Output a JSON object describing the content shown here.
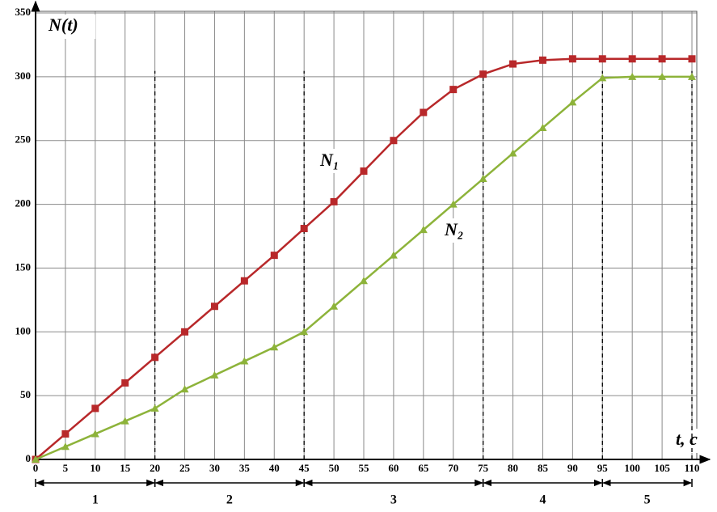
{
  "chart_data": {
    "type": "line",
    "y_label": "N(t)",
    "x_label": "t, c",
    "x": [
      0,
      5,
      10,
      15,
      20,
      25,
      30,
      35,
      40,
      45,
      50,
      55,
      60,
      65,
      70,
      75,
      80,
      85,
      90,
      95,
      100,
      105,
      110
    ],
    "series": [
      {
        "name": "N₁",
        "color": "#b8282a",
        "marker": "square",
        "values": [
          0,
          20,
          40,
          60,
          80,
          100,
          120,
          140,
          160,
          181,
          202,
          226,
          250,
          272,
          290,
          302,
          310,
          313,
          314,
          314,
          314,
          314,
          314
        ]
      },
      {
        "name": "N₂",
        "color": "#8db33a",
        "marker": "triangle",
        "values": [
          0,
          10,
          20,
          30,
          40,
          55,
          66,
          77,
          88,
          100,
          120,
          140,
          160,
          180,
          200,
          220,
          240,
          260,
          280,
          299,
          300,
          300,
          300
        ]
      }
    ],
    "xlim": [
      0,
      110
    ],
    "ylim": [
      0,
      350
    ],
    "xticks": [
      0,
      5,
      10,
      15,
      20,
      25,
      30,
      35,
      40,
      45,
      50,
      55,
      60,
      65,
      70,
      75,
      80,
      85,
      90,
      95,
      100,
      105,
      110
    ],
    "yticks": [
      0,
      50,
      100,
      150,
      200,
      250,
      300,
      350
    ],
    "grid": true,
    "stages": [
      {
        "label": "1",
        "start": 0,
        "end": 20
      },
      {
        "label": "2",
        "start": 20,
        "end": 45
      },
      {
        "label": "3",
        "start": 45,
        "end": 75
      },
      {
        "label": "4",
        "start": 75,
        "end": 95
      },
      {
        "label": "5",
        "start": 95,
        "end": 110
      }
    ]
  }
}
